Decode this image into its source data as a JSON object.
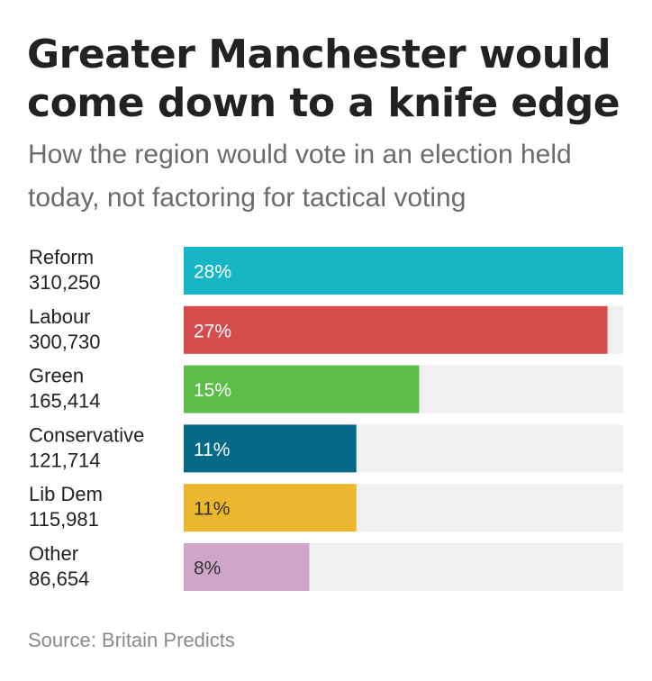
{
  "title": "Greater Manchester would come down to a knife edge",
  "subtitle": "How the region would vote in an election held today, not factoring for tactical voting",
  "source": "Source: Britain Predicts",
  "colors": {
    "track": "#f0f0f0",
    "label_light": "#ffffff",
    "label_dark": "#333333"
  },
  "chart_data": {
    "type": "bar",
    "orientation": "horizontal",
    "categories": [
      "Reform",
      "Labour",
      "Green",
      "Conservative",
      "Lib Dem",
      "Other"
    ],
    "votes": [
      "310,250",
      "300,730",
      "165,414",
      "121,714",
      "115,981",
      "86,654"
    ],
    "values": [
      28,
      27,
      15,
      11,
      11,
      8
    ],
    "value_labels": [
      "28%",
      "27%",
      "15%",
      "11%",
      "11%",
      "8%"
    ],
    "vote_counts": [
      310250,
      300730,
      165414,
      121714,
      115981,
      86654
    ],
    "colors": [
      "#17b6c6",
      "#d64c4c",
      "#5bbd4a",
      "#066a87",
      "#ebb72f",
      "#cfa6c8"
    ],
    "label_colors": [
      "#ffffff",
      "#ffffff",
      "#ffffff",
      "#ffffff",
      "#333333",
      "#333333"
    ],
    "xlabel": "",
    "ylabel": "",
    "grid": false,
    "legend": "none"
  }
}
